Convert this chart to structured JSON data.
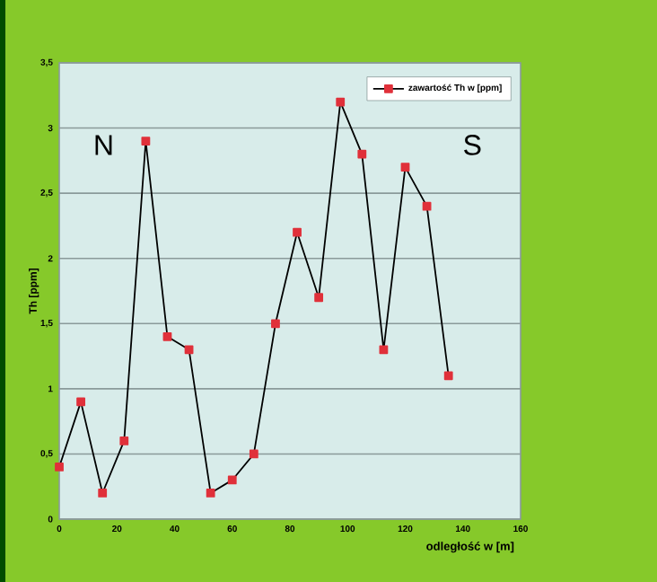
{
  "chart_data": {
    "type": "line",
    "xlabel": "odległość w  [m]",
    "ylabel": "Th [ppm]",
    "x": [
      0,
      7.5,
      15,
      22.5,
      30,
      37.5,
      45,
      52.5,
      60,
      67.5,
      75,
      82.5,
      90,
      97.5,
      105,
      112.5,
      120,
      127.5,
      135
    ],
    "series": [
      {
        "name": "zawartość Th w [ppm]",
        "color": "#e0303a",
        "values": [
          0.4,
          0.9,
          0.2,
          0.6,
          2.9,
          1.4,
          1.3,
          0.2,
          0.3,
          0.5,
          1.5,
          2.2,
          1.7,
          3.2,
          2.8,
          1.3,
          2.7,
          2.4,
          1.1
        ]
      }
    ],
    "xlim": [
      0,
      160
    ],
    "xticks": [
      0,
      20,
      40,
      60,
      80,
      100,
      120,
      140,
      160
    ],
    "ylim": [
      0,
      3.5
    ],
    "yticks": [
      0,
      {
        "value": 0.5,
        "label": "0,5"
      },
      1,
      {
        "value": 1.5,
        "label": "1,5"
      },
      2,
      {
        "value": 2.5,
        "label": "2,5"
      },
      3,
      {
        "value": 3.5,
        "label": "3,5"
      }
    ],
    "annotations": [
      "N",
      "S"
    ],
    "grid": "y",
    "legend": "top right",
    "marker": "square",
    "line_style": "solid"
  }
}
